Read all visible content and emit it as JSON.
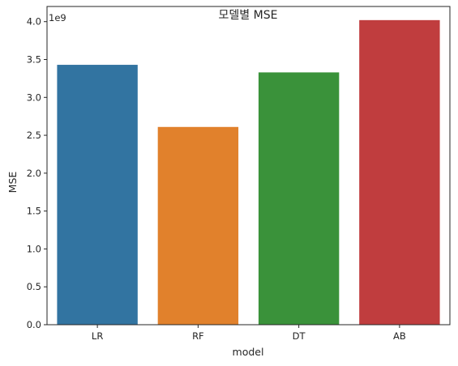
{
  "chart_data": {
    "type": "bar",
    "title": "모델별 MSE",
    "xlabel": "model",
    "ylabel": "MSE",
    "offset_label": "1e9",
    "categories": [
      "LR",
      "RF",
      "DT",
      "AB"
    ],
    "values": [
      3.43,
      2.61,
      3.33,
      4.02
    ],
    "colors": [
      "#3274a1",
      "#e1812c",
      "#3a923a",
      "#c03d3e"
    ],
    "ylim": [
      0,
      4.2
    ],
    "yticks": [
      0.0,
      0.5,
      1.0,
      1.5,
      2.0,
      2.5,
      3.0,
      3.5,
      4.0
    ],
    "ytick_labels": [
      "0.0",
      "0.5",
      "1.0",
      "1.5",
      "2.0",
      "2.5",
      "3.0",
      "3.5",
      "4.0"
    ],
    "grid": false,
    "legend": "none"
  }
}
